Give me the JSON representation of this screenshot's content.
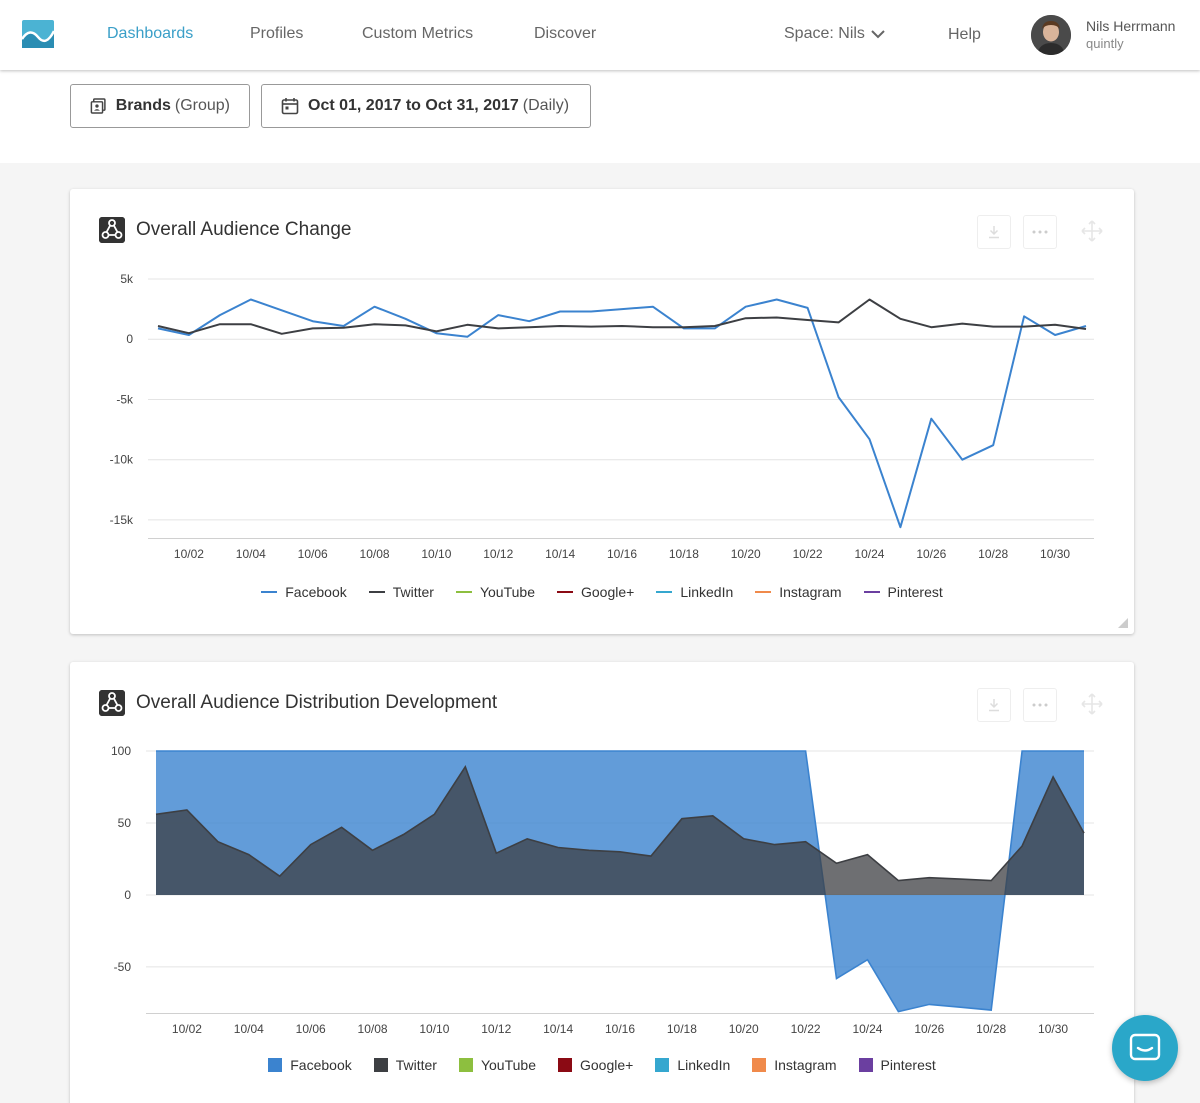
{
  "nav": {
    "items": [
      {
        "label": "Dashboards",
        "active": true
      },
      {
        "label": "Profiles"
      },
      {
        "label": "Custom Metrics"
      },
      {
        "label": "Discover"
      }
    ],
    "space_label": "Space: Nils",
    "help_label": "Help",
    "user": {
      "name": "Nils Herrmann",
      "org": "quintly"
    }
  },
  "filters": {
    "group": {
      "bold": "Brands",
      "muted": "(Group)"
    },
    "date": {
      "bold": "Oct 01, 2017 to Oct 31, 2017",
      "muted": "(Daily)"
    }
  },
  "colors": {
    "facebook": "#3b83cf",
    "twitter": "#3d3f43",
    "youtube": "#8dbf3f",
    "googleplus": "#8b0a14",
    "linkedin": "#35a7cf",
    "instagram": "#f08a4b",
    "pinterest": "#6b3fa0",
    "accent": "#3a9fc8"
  },
  "legend": [
    {
      "name": "Facebook",
      "color_key": "facebook"
    },
    {
      "name": "Twitter",
      "color_key": "twitter"
    },
    {
      "name": "YouTube",
      "color_key": "youtube"
    },
    {
      "name": "Google+",
      "color_key": "googleplus"
    },
    {
      "name": "LinkedIn",
      "color_key": "linkedin"
    },
    {
      "name": "Instagram",
      "color_key": "instagram"
    },
    {
      "name": "Pinterest",
      "color_key": "pinterest"
    }
  ],
  "chart_data": [
    {
      "type": "line",
      "title": "Overall Audience Change",
      "x": [
        "10/01",
        "10/02",
        "10/03",
        "10/04",
        "10/05",
        "10/06",
        "10/07",
        "10/08",
        "10/09",
        "10/10",
        "10/11",
        "10/12",
        "10/13",
        "10/14",
        "10/15",
        "10/16",
        "10/17",
        "10/18",
        "10/19",
        "10/20",
        "10/21",
        "10/22",
        "10/23",
        "10/24",
        "10/25",
        "10/26",
        "10/27",
        "10/28",
        "10/29",
        "10/30",
        "10/31"
      ],
      "xticks": [
        "10/02",
        "10/04",
        "10/06",
        "10/08",
        "10/10",
        "10/12",
        "10/14",
        "10/16",
        "10/18",
        "10/20",
        "10/22",
        "10/24",
        "10/26",
        "10/28",
        "10/30"
      ],
      "yticks": [
        5000,
        0,
        -5000,
        -10000,
        -15000
      ],
      "ytick_labels": [
        "5k",
        "0",
        "-5k",
        "-10k",
        "-15k"
      ],
      "ylim": [
        -16500,
        5000
      ],
      "legend_position": "bottom",
      "grid": true,
      "series": [
        {
          "name": "Facebook",
          "color_key": "facebook",
          "values": [
            900,
            350,
            2000,
            3300,
            2400,
            1500,
            1100,
            2700,
            1700,
            500,
            200,
            2000,
            1500,
            2300,
            2300,
            2500,
            2700,
            900,
            900,
            2700,
            3300,
            2600,
            -4800,
            -8300,
            -15600,
            -6600,
            -10000,
            -8800,
            1900,
            350,
            1100
          ]
        },
        {
          "name": "Twitter",
          "color_key": "twitter",
          "values": [
            1100,
            500,
            1250,
            1250,
            450,
            900,
            950,
            1250,
            1150,
            650,
            1200,
            900,
            1000,
            1100,
            1050,
            1100,
            1000,
            1000,
            1100,
            1750,
            1800,
            1600,
            1400,
            3300,
            1700,
            1000,
            1300,
            1050,
            1050,
            1200,
            850
          ]
        }
      ]
    },
    {
      "type": "area",
      "title": "Overall Audience Distribution Development",
      "x": [
        "10/01",
        "10/02",
        "10/03",
        "10/04",
        "10/05",
        "10/06",
        "10/07",
        "10/08",
        "10/09",
        "10/10",
        "10/11",
        "10/12",
        "10/13",
        "10/14",
        "10/15",
        "10/16",
        "10/17",
        "10/18",
        "10/19",
        "10/20",
        "10/21",
        "10/22",
        "10/23",
        "10/24",
        "10/25",
        "10/26",
        "10/27",
        "10/28",
        "10/29",
        "10/30",
        "10/31"
      ],
      "xticks": [
        "10/02",
        "10/04",
        "10/06",
        "10/08",
        "10/10",
        "10/12",
        "10/14",
        "10/16",
        "10/18",
        "10/20",
        "10/22",
        "10/24",
        "10/26",
        "10/28",
        "10/30"
      ],
      "yticks": [
        100,
        50,
        0,
        -50
      ],
      "ytick_labels": [
        "100",
        "50",
        "0",
        "-50"
      ],
      "ylim": [
        -82,
        100
      ],
      "legend_position": "bottom",
      "grid": true,
      "series": [
        {
          "name": "Facebook",
          "color_key": "facebook",
          "values": [
            100,
            100,
            100,
            100,
            100,
            100,
            100,
            100,
            100,
            100,
            100,
            100,
            100,
            100,
            100,
            100,
            100,
            100,
            100,
            100,
            100,
            100,
            -58,
            -45,
            -81,
            -76,
            -78,
            -80,
            100,
            100,
            100
          ]
        },
        {
          "name": "Twitter",
          "color_key": "twitter",
          "values": [
            56,
            59,
            37,
            28,
            13,
            35,
            47,
            31,
            42,
            56,
            89,
            29,
            39,
            33,
            31,
            30,
            27,
            53,
            55,
            39,
            35,
            37,
            22,
            28,
            10,
            12,
            11,
            10,
            34,
            82,
            43
          ]
        }
      ]
    }
  ]
}
